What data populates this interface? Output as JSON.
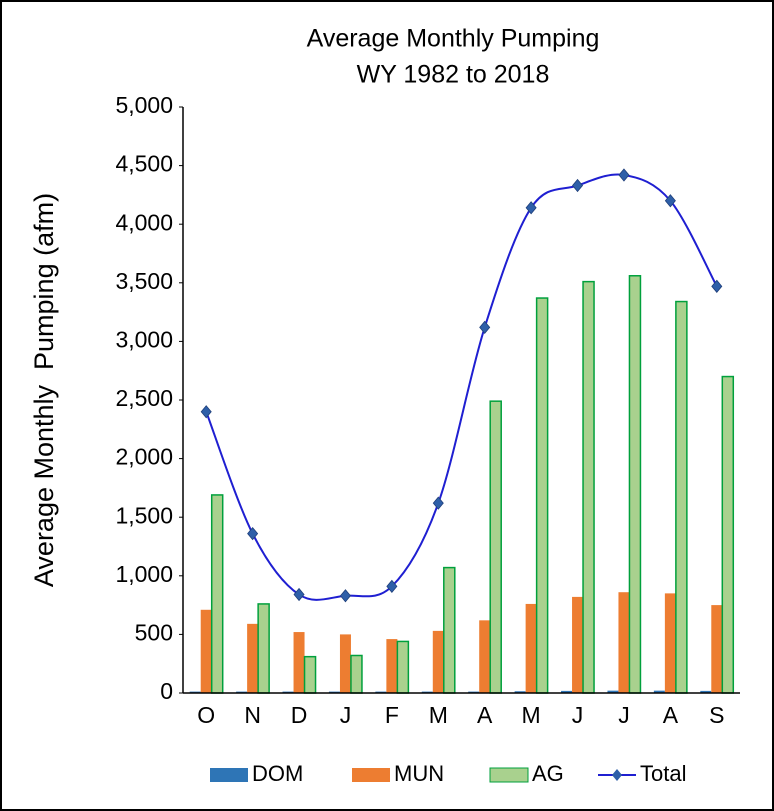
{
  "chart_data": {
    "type": "bar",
    "title": "Average Monthly Pumping",
    "subtitle": "WY 1982 to 2018",
    "y_label": "Average Monthly  Pumping (afm)",
    "categories": [
      "O",
      "N",
      "D",
      "J",
      "F",
      "M",
      "A",
      "M",
      "J",
      "J",
      "A",
      "S"
    ],
    "series": [
      {
        "name": "DOM",
        "type": "bar",
        "color": "#2e75b6",
        "values": [
          12,
          12,
          12,
          12,
          12,
          12,
          12,
          15,
          18,
          20,
          20,
          18
        ]
      },
      {
        "name": "MUN",
        "type": "bar",
        "color": "#ed7d31",
        "values": [
          710,
          590,
          520,
          500,
          460,
          530,
          620,
          760,
          820,
          860,
          850,
          750
        ]
      },
      {
        "name": "AG",
        "type": "bar",
        "color": "#a9d18e",
        "values": [
          1690,
          760,
          310,
          320,
          440,
          1070,
          2490,
          3370,
          3510,
          3560,
          3340,
          2700
        ]
      },
      {
        "name": "Total",
        "type": "line",
        "color": "#1f1fd1",
        "values": [
          2400,
          1360,
          840,
          830,
          910,
          1620,
          3120,
          4140,
          4330,
          4420,
          4200,
          3470
        ]
      }
    ],
    "ylim": [
      0,
      5000
    ],
    "yticks": [
      0,
      500,
      {
        "value": 1000,
        "label": "1,000"
      },
      {
        "value": 1500,
        "label": "1,500"
      },
      {
        "value": 2000,
        "label": "2,000"
      },
      {
        "value": 2500,
        "label": "2,500"
      },
      {
        "value": 3000,
        "label": "3,000"
      },
      {
        "value": 3500,
        "label": "3,500"
      },
      {
        "value": 4000,
        "label": "4,000"
      },
      {
        "value": 4500,
        "label": "4,500"
      },
      {
        "value": 5000,
        "label": "5,000"
      }
    ],
    "grid": false,
    "legend": "bottom"
  }
}
